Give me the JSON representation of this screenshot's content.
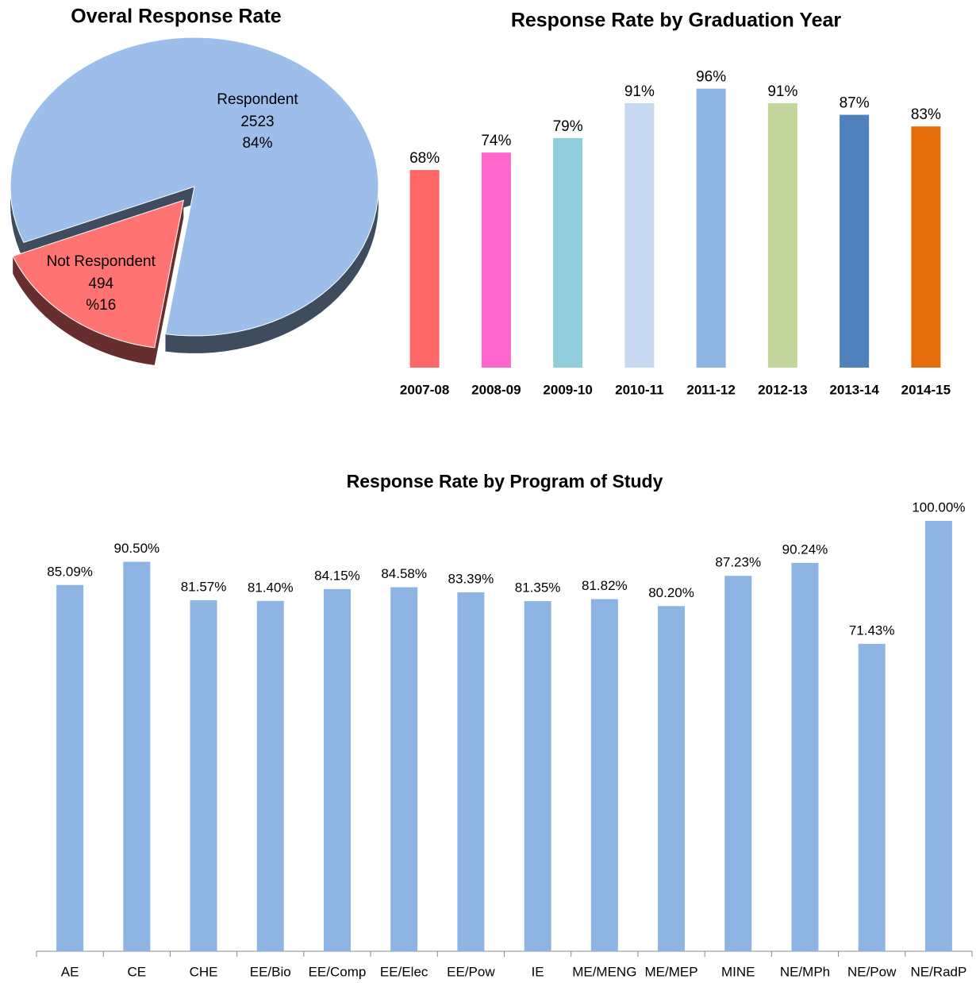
{
  "chart_data": [
    {
      "type": "pie",
      "title": "Overal Response Rate",
      "categories": [
        "Respondent",
        "Not Respondent"
      ],
      "values": [
        2523,
        494
      ],
      "percent_labels": [
        "84%",
        "%16"
      ],
      "colors": [
        "#9dbdea",
        "#ff7373"
      ]
    },
    {
      "type": "bar",
      "title": "Response Rate by Graduation Year",
      "categories": [
        "2007-08",
        "2008-09",
        "2009-10",
        "2010-11",
        "2011-12",
        "2012-13",
        "2013-14",
        "2014-15"
      ],
      "values": [
        68,
        74,
        79,
        91,
        96,
        91,
        87,
        83
      ],
      "value_labels": [
        "68%",
        "74%",
        "79%",
        "91%",
        "96%",
        "91%",
        "87%",
        "83%"
      ],
      "colors": [
        "#ff6666",
        "#ff66cc",
        "#92cddc",
        "#c6d9f1",
        "#8eb4e3",
        "#c3d69b",
        "#4f81bd",
        "#e46c0a"
      ],
      "ylim": [
        0,
        100
      ]
    },
    {
      "type": "bar",
      "title": "Response Rate by Program of Study",
      "categories": [
        "AE",
        "CE",
        "CHE",
        "EE/Bio",
        "EE/Comp",
        "EE/Elec",
        "EE/Pow",
        "IE",
        "ME/MENG",
        "ME/MEP",
        "MINE",
        "NE/MPh",
        "NE/Pow",
        "NE/RadP"
      ],
      "values": [
        85.09,
        90.5,
        81.57,
        81.4,
        84.15,
        84.58,
        83.39,
        81.35,
        81.82,
        80.2,
        87.23,
        90.24,
        71.43,
        100
      ],
      "value_labels": [
        "85.09%",
        "90.50%",
        "81.57%",
        "81.40%",
        "84.15%",
        "84.58%",
        "83.39%",
        "81.35%",
        "81.82%",
        "80.20%",
        "87.23%",
        "90.24%",
        "71.43%",
        "100.00%"
      ],
      "color": "#8eb4e3",
      "ylim": [
        0,
        100
      ],
      "axis_line": true
    }
  ]
}
